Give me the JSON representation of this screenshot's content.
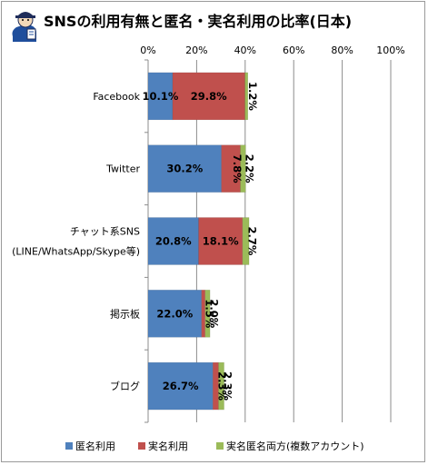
{
  "chart_data": {
    "type": "bar",
    "orientation": "horizontal",
    "stacked": true,
    "title": "SNSの利用有無と匿名・実名利用の比率(日本)",
    "categories": [
      [
        "Facebook"
      ],
      [
        "Twitter"
      ],
      [
        "チャット系SNS",
        "(LINE/WhatsApp/Skype等)"
      ],
      [
        "掲示板"
      ],
      [
        "ブログ"
      ]
    ],
    "series": [
      {
        "name": "匿名利用",
        "color": "#4f81bd",
        "values": [
          10.1,
          30.2,
          20.8,
          22.0,
          26.7
        ],
        "labels": [
          "10.1%",
          "30.2%",
          "20.8%",
          "22.0%",
          "26.7%"
        ]
      },
      {
        "name": "実名利用",
        "color": "#c0504d",
        "values": [
          29.8,
          7.8,
          18.1,
          1.5,
          2.3
        ],
        "labels": [
          "29.8%",
          "7.8%",
          "18.1%",
          "1.5%",
          "2.3%"
        ]
      },
      {
        "name": "実名匿名両方(複数アカウント)",
        "color": "#9bbb59",
        "values": [
          1.2,
          2.2,
          2.7,
          2.0,
          2.3
        ],
        "labels": [
          "1.2%",
          "2.2%",
          "2.7%",
          "2.0%",
          "2.3%"
        ]
      }
    ],
    "xlim": [
      0,
      100
    ],
    "xticks": [
      "0%",
      "20%",
      "40%",
      "60%",
      "80%",
      "100%"
    ],
    "grid": true,
    "legend_position": "bottom"
  },
  "logo": {
    "name": "mascot-logo-icon"
  }
}
